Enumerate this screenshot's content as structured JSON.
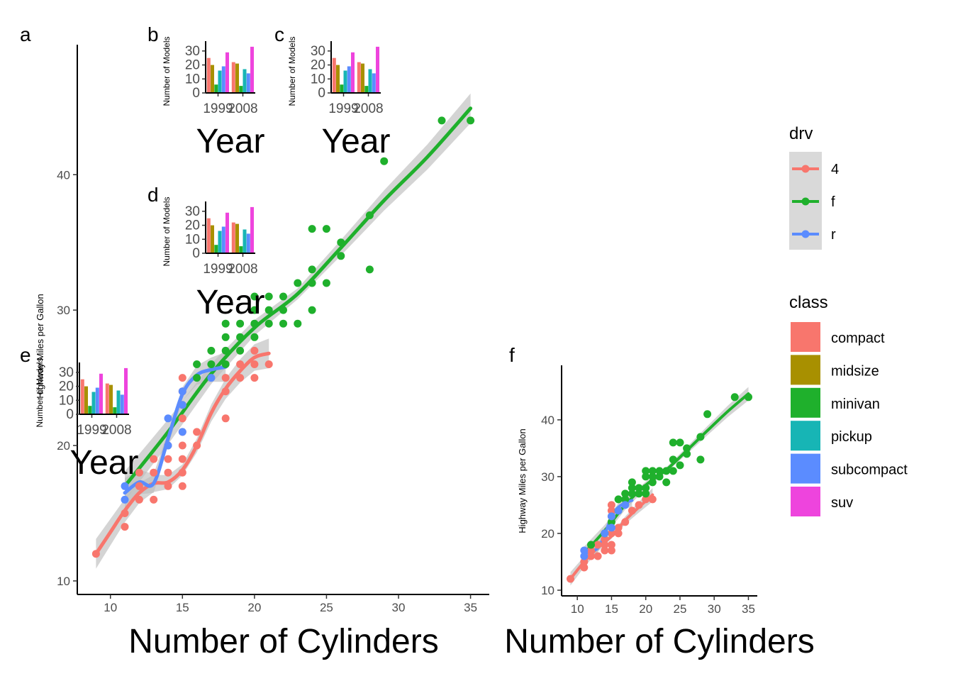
{
  "panels": {
    "a": {
      "tag": "a",
      "type": "scatter",
      "xlabel": "Number of Cylinders",
      "ylabel": "Highway Miles per Gallon",
      "xlim": [
        7.7,
        36.3
      ],
      "ylim": [
        9.0,
        49.6
      ],
      "xticks": [
        10,
        15,
        20,
        25,
        30,
        35
      ],
      "yticks": [
        10,
        20,
        30,
        40
      ]
    },
    "f": {
      "tag": "f",
      "type": "scatter",
      "xlabel": "Number of Cylinders",
      "ylabel": "Highway Miles per Gallon",
      "xlim": [
        7.7,
        36.3
      ],
      "ylim": [
        9.0,
        49.6
      ],
      "xticks": [
        10,
        15,
        20,
        25,
        30,
        35
      ],
      "yticks": [
        10,
        20,
        30,
        40
      ]
    },
    "insets": [
      {
        "tag": "b",
        "xlabel": "Year",
        "ylabel": "Number of Models"
      },
      {
        "tag": "c",
        "xlabel": "Year",
        "ylabel": "Number of Models"
      },
      {
        "tag": "d",
        "xlabel": "Year",
        "ylabel": "Number of Models"
      },
      {
        "tag": "e",
        "xlabel": "Year",
        "ylabel": "Number of Models"
      }
    ]
  },
  "legend": {
    "drv_title": "drv",
    "drv_items": [
      {
        "label": "4",
        "color": "#F8766D"
      },
      {
        "label": "f",
        "color": "#1FB02C"
      },
      {
        "label": "r",
        "color": "#5B8CFF"
      }
    ],
    "class_title": "class",
    "class_items": [
      {
        "label": "compact",
        "color": "#F8766D"
      },
      {
        "label": "midsize",
        "color": "#A89000"
      },
      {
        "label": "minivan",
        "color": "#1FB02C"
      },
      {
        "label": "pickup",
        "color": "#17B5B5"
      },
      {
        "label": "subcompact",
        "color": "#5B8CFF"
      },
      {
        "label": "suv",
        "color": "#EE44DD"
      }
    ]
  },
  "chart_data": [
    {
      "type": "scatter",
      "panel": "a",
      "xlabel": "Number of Cylinders",
      "ylabel": "Highway Miles per Gallon",
      "xlim": [
        7.7,
        36.3
      ],
      "ylim": [
        9.0,
        49.6
      ],
      "series": [
        {
          "name": "4",
          "color": "#F8766D",
          "points": [
            [
              9,
              12
            ],
            [
              11,
              14
            ],
            [
              11,
              15
            ],
            [
              12,
              16
            ],
            [
              12,
              17
            ],
            [
              12,
              18
            ],
            [
              13,
              16
            ],
            [
              13,
              18
            ],
            [
              13,
              19
            ],
            [
              14,
              17
            ],
            [
              14,
              18
            ],
            [
              14,
              19
            ],
            [
              14,
              20
            ],
            [
              15,
              17
            ],
            [
              15,
              18
            ],
            [
              15,
              19
            ],
            [
              15,
              20
            ],
            [
              15,
              21
            ],
            [
              15,
              22
            ],
            [
              15,
              23
            ],
            [
              15,
              24
            ],
            [
              15,
              25
            ],
            [
              16,
              20
            ],
            [
              16,
              21
            ],
            [
              18,
              22
            ],
            [
              18,
              24
            ],
            [
              18,
              25
            ],
            [
              19,
              25
            ],
            [
              19,
              26
            ],
            [
              20,
              25
            ],
            [
              20,
              26
            ],
            [
              20,
              27
            ],
            [
              21,
              26
            ]
          ],
          "smooth": [
            [
              9,
              12
            ],
            [
              10,
              13.6
            ],
            [
              11,
              15.2
            ],
            [
              12,
              16.5
            ],
            [
              13,
              17.2
            ],
            [
              14,
              17.3
            ],
            [
              15,
              18.2
            ],
            [
              16,
              20
            ],
            [
              17,
              22.4
            ],
            [
              18,
              24.2
            ],
            [
              19,
              25.5
            ],
            [
              20,
              26.5
            ],
            [
              21,
              26.8
            ]
          ]
        },
        {
          "name": "f",
          "color": "#1FB02C",
          "points": [
            [
              16,
              25
            ],
            [
              16,
              26
            ],
            [
              17,
              26
            ],
            [
              17,
              27
            ],
            [
              18,
              26
            ],
            [
              18,
              27
            ],
            [
              18,
              28
            ],
            [
              18,
              29
            ],
            [
              19,
              27
            ],
            [
              19,
              28
            ],
            [
              19,
              29
            ],
            [
              20,
              28
            ],
            [
              20,
              29
            ],
            [
              20,
              30
            ],
            [
              20,
              31
            ],
            [
              21,
              29
            ],
            [
              21,
              30
            ],
            [
              21,
              31
            ],
            [
              22,
              29
            ],
            [
              22,
              30
            ],
            [
              22,
              31
            ],
            [
              23,
              29
            ],
            [
              23,
              32
            ],
            [
              24,
              30
            ],
            [
              24,
              32
            ],
            [
              24,
              33
            ],
            [
              24,
              36
            ],
            [
              25,
              32
            ],
            [
              25,
              36
            ],
            [
              26,
              34
            ],
            [
              26,
              35
            ],
            [
              28,
              33
            ],
            [
              28,
              37
            ],
            [
              29,
              41
            ],
            [
              33,
              44
            ],
            [
              35,
              44
            ]
          ],
          "smooth": [
            [
              11,
              17
            ],
            [
              14,
              21
            ],
            [
              17,
              25.3
            ],
            [
              20,
              28.7
            ],
            [
              23,
              31.2
            ],
            [
              26,
              34.6
            ],
            [
              29,
              38.1
            ],
            [
              32,
              41.3
            ],
            [
              35,
              44.9
            ]
          ]
        },
        {
          "name": "r",
          "color": "#5B8CFF",
          "points": [
            [
              11,
              16
            ],
            [
              11,
              17
            ],
            [
              14,
              20
            ],
            [
              14,
              22
            ],
            [
              15,
              21
            ],
            [
              15,
              23
            ],
            [
              15,
              24
            ],
            [
              17,
              25
            ]
          ],
          "smooth": [
            [
              11,
              16.5
            ],
            [
              12,
              17.3
            ],
            [
              13,
              17.2
            ],
            [
              14,
              20.5
            ],
            [
              15,
              23.8
            ],
            [
              16,
              25.2
            ],
            [
              17,
              25.6
            ],
            [
              18,
              25.8
            ]
          ]
        }
      ]
    },
    {
      "type": "scatter",
      "panel": "f",
      "xlabel": "Number of Cylinders",
      "ylabel": "Highway Miles per Gallon",
      "xlim": [
        7.7,
        36.3
      ],
      "ylim": [
        9.0,
        49.6
      ],
      "series": [
        {
          "name": "4",
          "color": "#F8766D",
          "points": [
            [
              9,
              12
            ],
            [
              11,
              14
            ],
            [
              11,
              15
            ],
            [
              12,
              16
            ],
            [
              12,
              17
            ],
            [
              13,
              16
            ],
            [
              13,
              18
            ],
            [
              14,
              17
            ],
            [
              14,
              18
            ],
            [
              14,
              19
            ],
            [
              15,
              17
            ],
            [
              15,
              18
            ],
            [
              15,
              20
            ],
            [
              15,
              22
            ],
            [
              15,
              23
            ],
            [
              15,
              24
            ],
            [
              15,
              25
            ],
            [
              16,
              20
            ],
            [
              16,
              21
            ],
            [
              17,
              22
            ],
            [
              18,
              24
            ],
            [
              19,
              25
            ],
            [
              20,
              26
            ],
            [
              21,
              26
            ]
          ],
          "smooth": [
            [
              9,
              12
            ],
            [
              11,
              15
            ],
            [
              13,
              17.5
            ],
            [
              15,
              19.5
            ],
            [
              17,
              22.3
            ],
            [
              19,
              24.6
            ],
            [
              21,
              26.8
            ]
          ]
        },
        {
          "name": "f",
          "color": "#1FB02C",
          "points": [
            [
              12,
              18
            ],
            [
              14,
              20
            ],
            [
              15,
              22
            ],
            [
              16,
              24
            ],
            [
              16,
              26
            ],
            [
              17,
              26
            ],
            [
              17,
              27
            ],
            [
              18,
              27
            ],
            [
              18,
              28
            ],
            [
              18,
              29
            ],
            [
              19,
              27
            ],
            [
              19,
              28
            ],
            [
              20,
              27
            ],
            [
              20,
              28
            ],
            [
              20,
              30
            ],
            [
              20,
              31
            ],
            [
              21,
              29
            ],
            [
              21,
              30
            ],
            [
              21,
              31
            ],
            [
              22,
              30
            ],
            [
              22,
              31
            ],
            [
              23,
              29
            ],
            [
              23,
              31
            ],
            [
              24,
              31
            ],
            [
              24,
              33
            ],
            [
              24,
              36
            ],
            [
              25,
              32
            ],
            [
              25,
              36
            ],
            [
              26,
              34
            ],
            [
              26,
              35
            ],
            [
              28,
              33
            ],
            [
              28,
              37
            ],
            [
              29,
              41
            ],
            [
              33,
              44
            ],
            [
              35,
              44
            ]
          ],
          "smooth": [
            [
              11,
              16.5
            ],
            [
              14,
              20.5
            ],
            [
              17,
              25
            ],
            [
              20,
              28.5
            ],
            [
              23,
              31.2
            ],
            [
              26,
              34.6
            ],
            [
              29,
              38.1
            ],
            [
              32,
              41.5
            ],
            [
              35,
              44.6
            ]
          ]
        },
        {
          "name": "r",
          "color": "#5B8CFF",
          "points": [
            [
              11,
              16
            ],
            [
              11,
              17
            ],
            [
              14,
              20
            ],
            [
              15,
              21
            ],
            [
              15,
              23
            ],
            [
              16,
              24
            ],
            [
              17,
              25
            ]
          ],
          "smooth": [
            [
              11,
              16.3
            ],
            [
              12,
              17
            ],
            [
              13,
              17.4
            ],
            [
              14,
              19.8
            ],
            [
              15,
              23
            ],
            [
              16,
              24.6
            ],
            [
              17,
              25.4
            ],
            [
              18,
              25.8
            ]
          ]
        }
      ]
    },
    {
      "type": "bar",
      "panel": "insets",
      "categories": [
        "1999",
        "2008"
      ],
      "ylim": [
        0,
        35
      ],
      "yticks": [
        0,
        10,
        20,
        30
      ],
      "series": [
        {
          "name": "compact",
          "color": "#F8766D",
          "values": [
            25,
            22
          ]
        },
        {
          "name": "midsize",
          "color": "#A89000",
          "values": [
            20,
            21
          ]
        },
        {
          "name": "minivan",
          "color": "#1FB02C",
          "values": [
            6,
            5
          ]
        },
        {
          "name": "pickup",
          "color": "#17B5B5",
          "values": [
            16,
            17
          ]
        },
        {
          "name": "subcompact",
          "color": "#5B8CFF",
          "values": [
            19,
            14
          ]
        },
        {
          "name": "suv",
          "color": "#EE44DD",
          "values": [
            29,
            33
          ]
        }
      ]
    }
  ]
}
